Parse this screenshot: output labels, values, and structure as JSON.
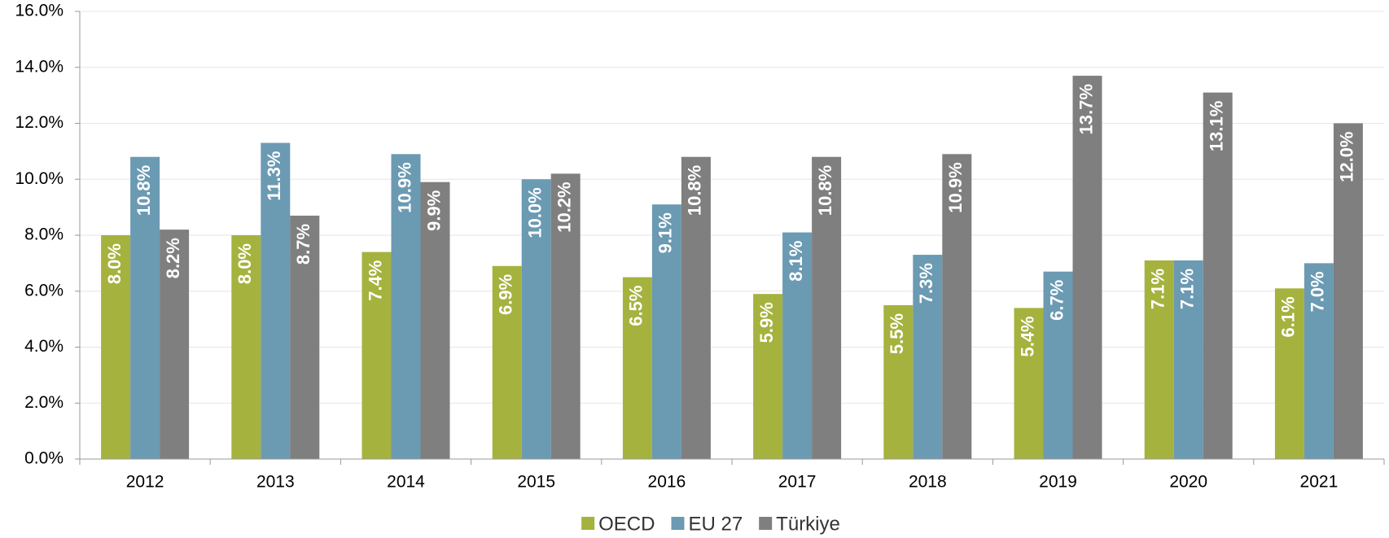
{
  "chart_data": {
    "type": "bar",
    "categories": [
      "2012",
      "2013",
      "2014",
      "2015",
      "2016",
      "2017",
      "2018",
      "2019",
      "2020",
      "2021"
    ],
    "series": [
      {
        "name": "OECD",
        "color": "#a5b23e",
        "values": [
          8.0,
          8.0,
          7.4,
          6.9,
          6.5,
          5.9,
          5.5,
          5.4,
          7.1,
          6.1
        ],
        "value_labels": [
          "8.0%",
          "8.0%",
          "7.4%",
          "6.9%",
          "6.5%",
          "5.9%",
          "5.5%",
          "5.4%",
          "7.1%",
          "6.1%"
        ]
      },
      {
        "name": "EU 27",
        "color": "#6b9ab3",
        "values": [
          10.8,
          11.3,
          10.9,
          10.0,
          9.1,
          8.1,
          7.3,
          6.7,
          7.1,
          7.0
        ],
        "value_labels": [
          "10.8%",
          "11.3%",
          "10.9%",
          "10.0%",
          "9.1%",
          "8.1%",
          "7.3%",
          "6.7%",
          "7.1%",
          "7.0%"
        ]
      },
      {
        "name": "Türkiye",
        "color": "#7f7f7f",
        "values": [
          8.2,
          8.7,
          9.9,
          10.2,
          10.8,
          10.8,
          10.9,
          13.7,
          13.1,
          12.0
        ],
        "value_labels": [
          "8.2%",
          "8.7%",
          "9.9%",
          "10.2%",
          "10.8%",
          "10.8%",
          "10.9%",
          "13.7%",
          "13.1%",
          "12.0%"
        ]
      }
    ],
    "ylim": [
      0,
      16
    ],
    "yticks": [
      {
        "value": 0,
        "label": "0.0%"
      },
      {
        "value": 2,
        "label": "2.0%"
      },
      {
        "value": 4,
        "label": "4.0%"
      },
      {
        "value": 6,
        "label": "6.0%"
      },
      {
        "value": 8,
        "label": "8.0%"
      },
      {
        "value": 10,
        "label": "10.0%"
      },
      {
        "value": 12,
        "label": "12.0%"
      },
      {
        "value": 14,
        "label": "14.0%"
      },
      {
        "value": 16,
        "label": "16.0%"
      }
    ],
    "grid": true,
    "legend": "bottom"
  }
}
